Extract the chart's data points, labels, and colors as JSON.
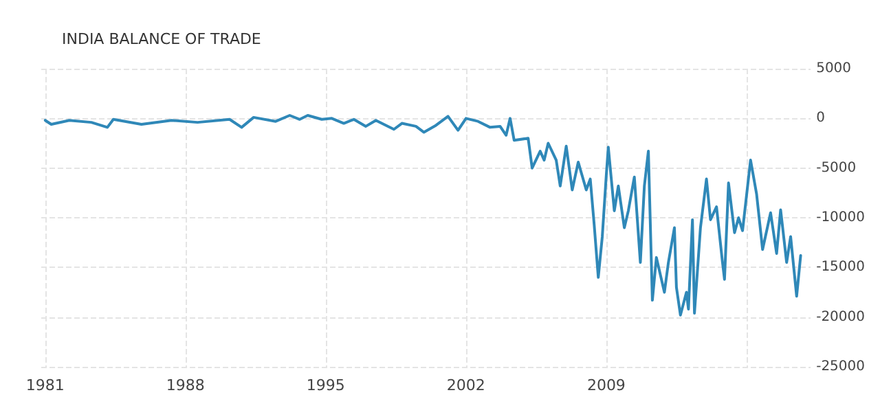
{
  "chart_data": {
    "type": "line",
    "title": "INDIA BALANCE OF TRADE",
    "x": [
      1981.0,
      1981.3,
      1982.2,
      1983.3,
      1984.1,
      1984.4,
      1985.8,
      1987.3,
      1988.6,
      1990.2,
      1990.8,
      1991.4,
      1992.5,
      1993.2,
      1993.7,
      1994.1,
      1994.8,
      1995.3,
      1995.9,
      1996.4,
      1997.0,
      1997.5,
      1998.4,
      1998.8,
      1999.5,
      1999.9,
      2000.5,
      2001.1,
      2001.6,
      2002.0,
      2002.6,
      2003.2,
      2003.7,
      2004.0,
      2004.2,
      2004.4,
      2005.1,
      2005.3,
      2005.7,
      2005.9,
      2006.1,
      2006.5,
      2006.7,
      2007.0,
      2007.3,
      2007.6,
      2008.0,
      2008.2,
      2008.4,
      2008.6,
      2008.8,
      2009.0,
      2009.1,
      2009.4,
      2009.6,
      2009.9,
      2010.1,
      2010.4,
      2010.7,
      2010.9,
      2011.1,
      2011.3,
      2011.5,
      2011.9,
      2012.1,
      2012.4,
      2012.5,
      2012.7,
      2013.0,
      2013.1,
      2013.3,
      2013.4,
      2013.7,
      2014.0,
      2014.2,
      2014.5,
      2014.8,
      2014.9,
      2015.1,
      2015.4,
      2015.6,
      2015.8,
      2016.2,
      2016.5,
      2016.8,
      2017.2,
      2017.5,
      2017.7,
      2018.0,
      2018.2,
      2018.5,
      2018.7
    ],
    "series": [
      {
        "color": "#2f88b8",
        "values": [
          -200,
          -600,
          -200,
          -400,
          -900,
          -100,
          -600,
          -200,
          -400,
          -100,
          -900,
          100,
          -300,
          300,
          -100,
          300,
          -100,
          0,
          -500,
          -100,
          -800,
          -200,
          -1100,
          -500,
          -800,
          -1400,
          -700,
          200,
          -1200,
          0,
          -300,
          -900,
          -800,
          -1700,
          0,
          -2200,
          -2000,
          -5000,
          -3300,
          -4200,
          -2500,
          -4200,
          -6800,
          -2800,
          -7200,
          -4400,
          -7200,
          -6100,
          -10800,
          -16000,
          -11900,
          -5700,
          -2900,
          -9300,
          -6800,
          -11000,
          -9300,
          -5900,
          -14500,
          -6800,
          -3300,
          -18300,
          -14000,
          -17500,
          -14500,
          -11000,
          -17000,
          -19800,
          -17500,
          -19200,
          -10200,
          -19600,
          -11000,
          -6100,
          -10200,
          -8900,
          -14500,
          -16200,
          -6500,
          -11500,
          -10000,
          -11300,
          -4200,
          -7600,
          -13200,
          -9500,
          -13600,
          -9200,
          -14500,
          -11900,
          -17900,
          -13800
        ]
      }
    ],
    "xlim": [
      1980.8,
      2019.2
    ],
    "xticks": [
      1981,
      1988,
      1995,
      2002,
      2009,
      {
        "value": 2016,
        "label": null
      }
    ],
    "ylim": [
      -25000,
      5000
    ],
    "yticks": [
      -25000,
      -20000,
      -15000,
      -10000,
      -5000,
      0,
      5000
    ],
    "grid": true,
    "marker": "none",
    "line_style": "solid"
  }
}
